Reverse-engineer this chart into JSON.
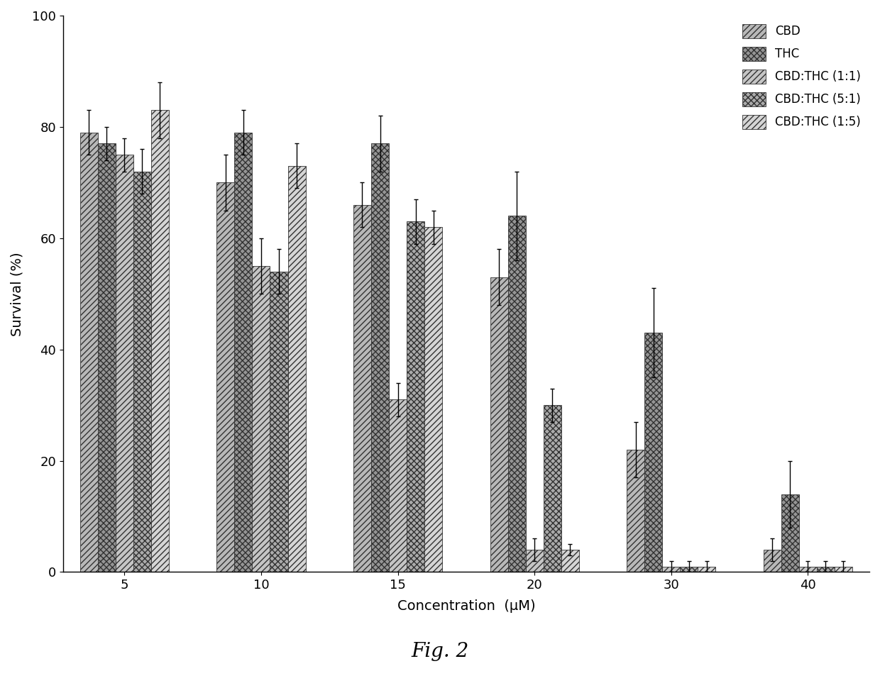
{
  "concentrations": [
    5,
    10,
    15,
    20,
    30,
    40
  ],
  "series": [
    {
      "label": "CBD",
      "values": [
        79,
        70,
        66,
        53,
        22,
        4
      ],
      "errors": [
        4,
        5,
        4,
        5,
        5,
        2
      ],
      "hatch": "////",
      "color": "#b0b0b0"
    },
    {
      "label": "THC",
      "values": [
        77,
        79,
        77,
        64,
        43,
        14
      ],
      "errors": [
        3,
        4,
        5,
        8,
        8,
        6
      ],
      "hatch": "xxxx",
      "color": "#909090"
    },
    {
      "label": "CBD:THC (1:1)",
      "values": [
        75,
        55,
        31,
        4,
        1,
        1
      ],
      "errors": [
        3,
        5,
        3,
        2,
        1,
        1
      ],
      "hatch": "////",
      "color": "#c8c8c8"
    },
    {
      "label": "CBD:THC (5:1)",
      "values": [
        72,
        54,
        63,
        30,
        1,
        1
      ],
      "errors": [
        4,
        4,
        4,
        3,
        1,
        1
      ],
      "hatch": "xxxx",
      "color": "#a8a8a8"
    },
    {
      "label": "CBD:THC (1:5)",
      "values": [
        83,
        73,
        62,
        4,
        1,
        1
      ],
      "errors": [
        5,
        4,
        3,
        1,
        1,
        1
      ],
      "hatch": "////",
      "color": "#d8d8d8"
    }
  ],
  "ylabel": "Survival (%)",
  "xlabel": "Concentration  (μM)",
  "ylim": [
    0,
    100
  ],
  "yticks": [
    0,
    20,
    40,
    60,
    80,
    100
  ],
  "bar_width": 0.13,
  "figsize": [
    12.4,
    9.77
  ],
  "dpi": 100,
  "fig2_label": "Fig. 2",
  "background_color": "#ffffff"
}
